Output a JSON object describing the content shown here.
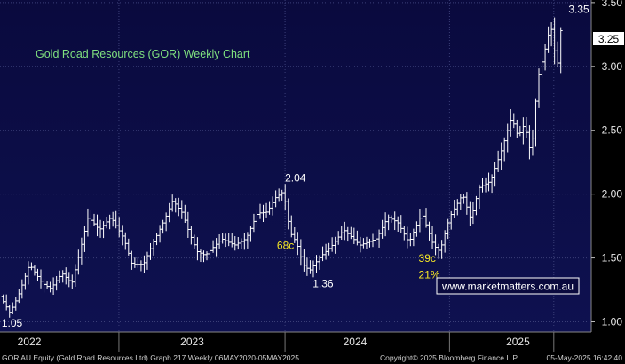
{
  "chart_data": {
    "type": "ohlc",
    "title": "Gold Road Resources (GOR) Weekly Chart",
    "ylim": [
      0.92,
      3.52
    ],
    "y_ticks": [
      "3.50",
      "3.00",
      "2.50",
      "2.00",
      "1.50",
      "1.00"
    ],
    "y_tick_values": [
      3.5,
      3.0,
      2.5,
      2.0,
      1.5,
      1.0
    ],
    "year_labels": [
      "2022",
      "2023",
      "2024",
      "2025"
    ],
    "year_label_pos": [
      0.1,
      1.1,
      2.1,
      3.1
    ],
    "year_separators": [
      0.65,
      1.67,
      2.68,
      3.32
    ],
    "x_range": [
      -0.08,
      3.55
    ],
    "last_price": "3.25",
    "last_price_value": 3.25,
    "annotations": [
      {
        "text": "3.35",
        "x": 3.41,
        "y": 3.42,
        "color": "#ffffff"
      },
      {
        "text": "2.04",
        "x": 1.67,
        "y": 2.1,
        "color": "#ffffff"
      },
      {
        "text": "68c",
        "x": 1.62,
        "y": 1.57,
        "color": "#f5e625"
      },
      {
        "text": "1.36",
        "x": 1.84,
        "y": 1.27,
        "color": "#ffffff"
      },
      {
        "text": "39c",
        "x": 2.49,
        "y": 1.47,
        "color": "#f5e625"
      },
      {
        "text": "21%",
        "x": 2.49,
        "y": 1.34,
        "color": "#f5e625"
      },
      {
        "text": "1.05",
        "x": -0.07,
        "y": 0.96,
        "color": "#ffffff"
      }
    ],
    "website": "www.marketmatters.com.au",
    "footer_left": "GOR AU Equity (Gold Road Resources Ltd) Graph 217  Weekly 06MAY2020-05MAY2025",
    "footer_center": "Copyright© 2025 Bloomberg Finance L.P.",
    "footer_right": "05-May-2025 16:42:40",
    "keypoints": [
      [
        -0.06,
        1.2
      ],
      [
        0.0,
        1.07
      ],
      [
        0.05,
        1.2
      ],
      [
        0.12,
        1.45
      ],
      [
        0.2,
        1.3
      ],
      [
        0.25,
        1.26
      ],
      [
        0.32,
        1.38
      ],
      [
        0.38,
        1.3
      ],
      [
        0.42,
        1.5
      ],
      [
        0.48,
        1.82
      ],
      [
        0.55,
        1.72
      ],
      [
        0.62,
        1.82
      ],
      [
        0.7,
        1.65
      ],
      [
        0.75,
        1.45
      ],
      [
        0.82,
        1.45
      ],
      [
        0.88,
        1.62
      ],
      [
        0.95,
        1.8
      ],
      [
        1.0,
        1.95
      ],
      [
        1.06,
        1.85
      ],
      [
        1.1,
        1.7
      ],
      [
        1.15,
        1.55
      ],
      [
        1.2,
        1.52
      ],
      [
        1.3,
        1.65
      ],
      [
        1.38,
        1.6
      ],
      [
        1.45,
        1.65
      ],
      [
        1.52,
        1.85
      ],
      [
        1.58,
        1.86
      ],
      [
        1.63,
        1.97
      ],
      [
        1.68,
        2.02
      ],
      [
        1.72,
        1.7
      ],
      [
        1.76,
        1.62
      ],
      [
        1.8,
        1.45
      ],
      [
        1.84,
        1.4
      ],
      [
        1.9,
        1.5
      ],
      [
        1.98,
        1.6
      ],
      [
        2.05,
        1.72
      ],
      [
        2.15,
        1.6
      ],
      [
        2.25,
        1.65
      ],
      [
        2.32,
        1.82
      ],
      [
        2.38,
        1.78
      ],
      [
        2.45,
        1.62
      ],
      [
        2.53,
        1.85
      ],
      [
        2.6,
        1.6
      ],
      [
        2.64,
        1.55
      ],
      [
        2.7,
        1.82
      ],
      [
        2.78,
        2.0
      ],
      [
        2.83,
        1.8
      ],
      [
        2.88,
        2.05
      ],
      [
        2.95,
        2.1
      ],
      [
        3.02,
        2.35
      ],
      [
        3.08,
        2.6
      ],
      [
        3.12,
        2.45
      ],
      [
        3.16,
        2.55
      ],
      [
        3.2,
        2.3
      ],
      [
        3.24,
        2.9
      ],
      [
        3.28,
        3.1
      ],
      [
        3.32,
        3.33
      ],
      [
        3.36,
        2.98
      ],
      [
        3.38,
        3.28
      ]
    ]
  }
}
